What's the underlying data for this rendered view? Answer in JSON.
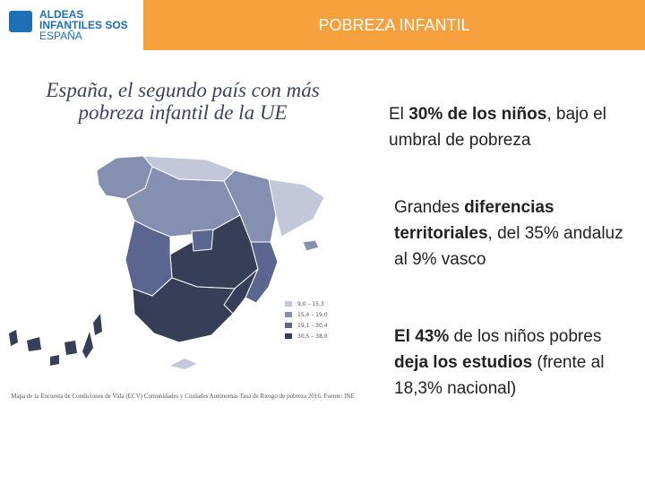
{
  "header": {
    "logo_lines": [
      "ALDEAS",
      "INFANTILES SOS",
      "ESPAÑA"
    ],
    "title": "POBREZA INFANTIL"
  },
  "figure": {
    "title_line1": "España, el segundo país con más",
    "title_line2": "pobreza infantil de la UE",
    "legend": [
      {
        "label": "9,0 – 15,3",
        "color": "#c2c8da"
      },
      {
        "label": "15,4 – 19,0",
        "color": "#8590b1"
      },
      {
        "label": "19,1 – 30,4",
        "color": "#5b6690"
      },
      {
        "label": "30,5 – 38,0",
        "color": "#363e58"
      }
    ],
    "caption": "Mapa de la Encuesta de Condiciones de Vida (ECV) Comunidades y Ciudades Autónomas Tasa de Riesgo de pobreza 2016. Fuente: INE"
  },
  "bullets": {
    "b1": {
      "pre": "El ",
      "bold": "30% de los niños",
      "post": ", bajo el umbral de pobreza"
    },
    "b2": {
      "pre": "Grandes ",
      "bold": "diferencias territoriales",
      "post": ", del 35% andaluz al 9% vasco"
    },
    "b3": {
      "bold1": "El 43%",
      "mid": " de los niños pobres ",
      "bold2": "deja los estudios",
      "post": " (frente al 18,3% nacional)"
    }
  },
  "colors": {
    "orange": "#f6a03e",
    "brand_blue": "#1f6fb5",
    "map_light": "#c2c8da",
    "map_mid_light": "#8590b1",
    "map_mid": "#5b6690",
    "map_dark": "#363e58"
  }
}
